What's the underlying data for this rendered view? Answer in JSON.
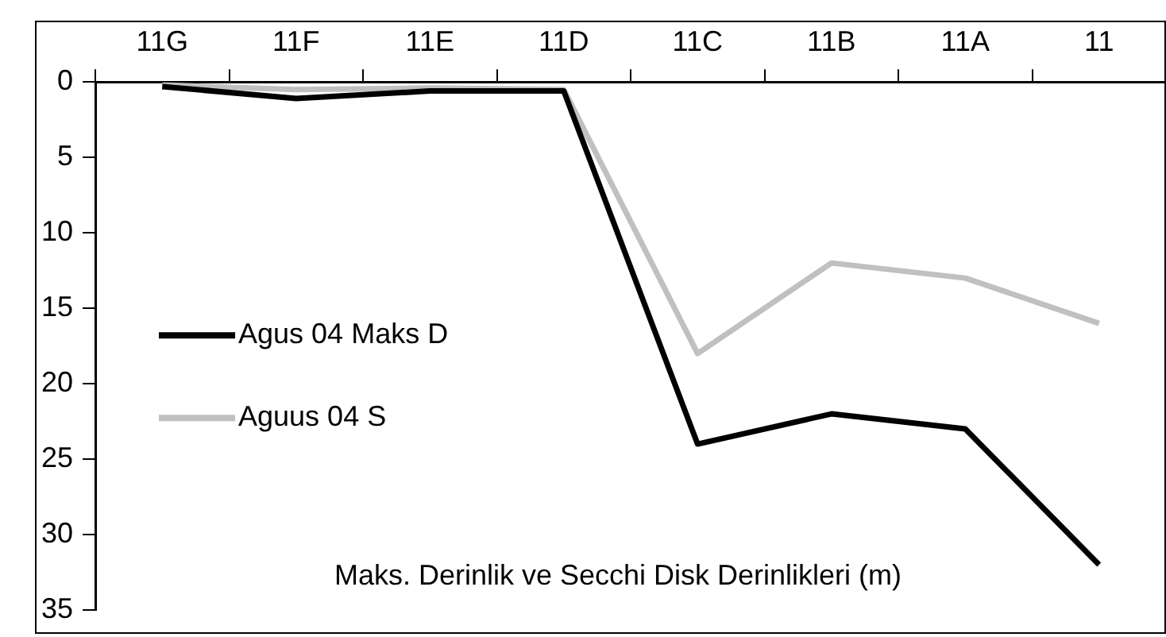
{
  "chart_data": {
    "type": "line",
    "categories": [
      "11G",
      "11F",
      "11E",
      "11D",
      "11C",
      "11B",
      "11A",
      "11"
    ],
    "series": [
      {
        "name": "Agus 04 Maks D",
        "color": "#000000",
        "values": [
          0.3,
          1.1,
          0.6,
          0.6,
          24,
          22,
          23,
          32
        ]
      },
      {
        "name": "Aguus 04 S",
        "color": "#c0c0c0",
        "values": [
          0.2,
          0.5,
          0.4,
          0.5,
          18,
          12,
          13,
          16
        ]
      }
    ],
    "ylim": [
      35,
      0
    ],
    "yticks": [
      0,
      5,
      10,
      15,
      20,
      25,
      30,
      35
    ],
    "grid": false,
    "legend": "left",
    "marker": "none",
    "line_style": "solid",
    "annotations": [
      "Maks. Derinlik ve Secchi Disk Derinlikleri (m)"
    ]
  }
}
